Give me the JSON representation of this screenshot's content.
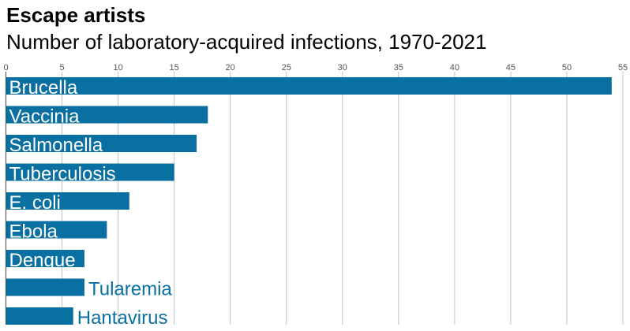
{
  "colors": {
    "bar": "#0a6fa1",
    "grid": "#b7c6d0",
    "axis": "#4a4a4a",
    "tick_label": "#555555",
    "label_inside": "#ffffff",
    "label_outside": "#0a6fa1"
  },
  "chart_data": {
    "type": "bar",
    "orientation": "horizontal",
    "title": "Escape artists",
    "subtitle": "Number of laboratory-acquired infections, 1970-2021",
    "xlabel": "",
    "ylabel": "",
    "xlim": [
      0,
      55
    ],
    "xticks": [
      0,
      5,
      10,
      15,
      20,
      25,
      30,
      35,
      40,
      45,
      50,
      55
    ],
    "grid": true,
    "legend": "none",
    "categories": [
      "Brucella",
      "Vaccinia",
      "Salmonella",
      "Tuberculosis",
      "E. coli",
      "Ebola",
      "Dengue",
      "Tularemia",
      "Hantavirus"
    ],
    "values": [
      54,
      18,
      17,
      15,
      11,
      9,
      7,
      7,
      6
    ]
  }
}
